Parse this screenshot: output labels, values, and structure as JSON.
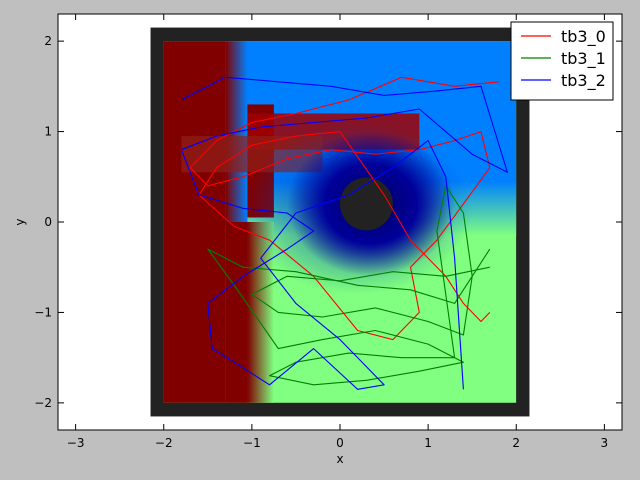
{
  "chart_data": {
    "type": "line",
    "title": "",
    "xlabel": "x",
    "ylabel": "y",
    "xlim": [
      -3.2,
      3.2
    ],
    "ylim": [
      -2.3,
      2.3
    ],
    "xticks": [
      -3,
      -2,
      -1,
      0,
      1,
      2,
      3
    ],
    "yticks": [
      -2,
      -1,
      0,
      1,
      2
    ],
    "xtick_labels": [
      "−3",
      "−2",
      "−1",
      "0",
      "1",
      "2",
      "3"
    ],
    "ytick_labels": [
      "−2",
      "−1",
      "0",
      "1",
      "2"
    ],
    "grid": false,
    "legend": {
      "placement": "top-right"
    },
    "background_map": {
      "outer_wall": {
        "xmin": -2.15,
        "xmax": 2.15,
        "ymin": -2.15,
        "ymax": 2.15,
        "color": "#222222"
      },
      "arena": {
        "xmin": -2.0,
        "xmax": 2.0,
        "ymin": -2.0,
        "ymax": 2.0
      },
      "center_obstacle": {
        "x": 0.3,
        "y": 0.2,
        "r": 0.3,
        "color": "#222222"
      },
      "regions": [
        {
          "name": "red",
          "color": "#800000"
        },
        {
          "name": "blue",
          "color": "#0080ff"
        },
        {
          "name": "green",
          "color": "#80ff80"
        },
        {
          "name": "dark-blue",
          "color": "#00007a"
        }
      ]
    },
    "series": [
      {
        "name": "tb3_0",
        "color": "#ff0000",
        "x": [
          1.8,
          1.3,
          0.7,
          0.1,
          -0.5,
          -1.0,
          -1.4,
          -1.7,
          -1.5,
          -1.1,
          -0.6,
          -0.1,
          0.4,
          0.9,
          1.3,
          1.6,
          1.7,
          1.4,
          1.1,
          0.8,
          0.9,
          0.6,
          0.2,
          -0.3,
          -0.8,
          -1.2,
          -1.6,
          -1.4,
          -1.0,
          -0.5,
          0.0,
          0.5,
          0.8,
          1.0,
          1.2,
          1.4,
          1.6,
          1.7
        ],
        "y": [
          1.55,
          1.5,
          1.6,
          1.35,
          1.2,
          1.1,
          0.9,
          0.6,
          0.4,
          0.5,
          0.7,
          0.8,
          0.75,
          0.8,
          0.9,
          1.0,
          0.6,
          0.2,
          -0.2,
          -0.5,
          -1.0,
          -1.3,
          -1.2,
          -0.6,
          -0.2,
          -0.05,
          0.3,
          0.6,
          0.85,
          0.95,
          1.0,
          0.3,
          -0.2,
          -0.4,
          -0.6,
          -0.9,
          -1.1,
          -1.0
        ]
      },
      {
        "name": "tb3_1",
        "color": "#008000",
        "x": [
          1.7,
          1.2,
          0.6,
          0.0,
          -0.6,
          -1.0,
          -0.7,
          -0.2,
          0.4,
          1.0,
          1.4,
          1.5,
          1.4,
          1.2,
          1.1,
          1.3,
          0.7,
          0.1,
          -0.5,
          -0.8,
          -0.3,
          0.3,
          0.9,
          1.4,
          1.0,
          0.4,
          -0.2,
          -0.7,
          -1.2,
          -1.5,
          -1.1,
          -0.5,
          0.2,
          0.8,
          1.3,
          1.7
        ],
        "y": [
          -0.5,
          -0.6,
          -0.55,
          -0.65,
          -0.6,
          -0.8,
          -1.0,
          -1.05,
          -0.95,
          -1.1,
          -1.25,
          -0.6,
          0.1,
          0.4,
          -0.1,
          -1.5,
          -1.5,
          -1.45,
          -1.55,
          -1.7,
          -1.8,
          -1.75,
          -1.65,
          -1.55,
          -1.35,
          -1.2,
          -1.3,
          -1.4,
          -0.7,
          -0.3,
          -0.5,
          -0.55,
          -0.7,
          -0.75,
          -0.9,
          -0.3
        ]
      },
      {
        "name": "tb3_2",
        "color": "#0000ff",
        "x": [
          -1.8,
          -1.3,
          -0.7,
          -0.1,
          0.5,
          1.1,
          1.6,
          1.9,
          1.5,
          0.9,
          0.3,
          -0.3,
          -0.9,
          -1.4,
          -1.8,
          -1.6,
          -1.1,
          -0.6,
          -0.3,
          -0.6,
          -1.1,
          -1.5,
          -1.45,
          -1.2,
          -0.8,
          -0.3,
          0.2,
          0.5,
          0.0,
          -0.5,
          -0.9,
          -0.5,
          0.1,
          0.6,
          1.0,
          1.2,
          1.3,
          1.4
        ],
        "y": [
          1.35,
          1.6,
          1.55,
          1.5,
          1.4,
          1.45,
          1.5,
          0.55,
          0.75,
          1.25,
          1.15,
          1.1,
          1.05,
          0.95,
          0.8,
          0.3,
          0.15,
          0.1,
          -0.1,
          -0.3,
          -0.6,
          -0.9,
          -1.4,
          -1.55,
          -1.8,
          -1.4,
          -1.85,
          -1.8,
          -1.3,
          -0.9,
          -0.4,
          0.1,
          0.3,
          0.6,
          0.9,
          0.5,
          -0.4,
          -1.85
        ]
      }
    ]
  }
}
